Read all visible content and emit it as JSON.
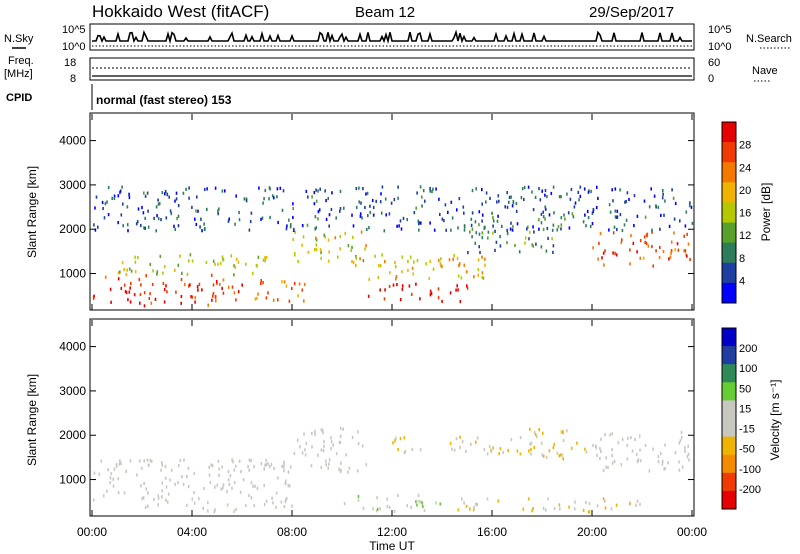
{
  "header": {
    "station": "Hokkaido West (fitACF)",
    "beam": "Beam 12",
    "date": "29/Sep/2017"
  },
  "aux": {
    "nsky_label": "N.Sky",
    "nsearch_label": "N.Search",
    "noise_ticks_left": [
      "10^5",
      "10^0"
    ],
    "noise_ticks_right": [
      "10^5",
      "10^0"
    ],
    "freq_label_line1": "Freq.",
    "freq_label_line2": "[MHz]",
    "freq_ticks": [
      "18",
      "8"
    ],
    "nave_label": "Nave",
    "nave_ticks": [
      "60",
      "0"
    ],
    "cpid_label": "CPID",
    "cpid_value": "normal (fast stereo) 153"
  },
  "colors": {
    "power_scale": [
      "#0000ff",
      "#1f3fa0",
      "#2e7d5a",
      "#5aa02c",
      "#b5c800",
      "#f0b400",
      "#f57800",
      "#f03c00",
      "#e60000"
    ],
    "velocity_scale": [
      "#0000c8",
      "#1f3fa0",
      "#2e8b57",
      "#66cc33",
      "#c8c8c0",
      "#c8c8c0",
      "#f0b400",
      "#f58c00",
      "#f03c00",
      "#e60000"
    ]
  },
  "chart_data": [
    {
      "type": "heatmap",
      "name": "power",
      "ylabel": "Slant Range [km]",
      "xlabel": "",
      "yticks": [
        "1000",
        "2000",
        "3000",
        "4000"
      ],
      "ylim": [
        200,
        4600
      ],
      "xlim": [
        "00:00",
        "24:00"
      ],
      "colorbar": {
        "label": "Power [dB]",
        "ticks": [
          "4",
          "8",
          "12",
          "16",
          "20",
          "24",
          "28"
        ],
        "range": [
          0,
          32
        ]
      },
      "regions": [
        {
          "t": [
            0,
            6
          ],
          "r": [
            300,
            1000
          ],
          "value": 28
        },
        {
          "t": [
            6,
            8.5
          ],
          "r": [
            400,
            900
          ],
          "value": 24
        },
        {
          "t": [
            1,
            7
          ],
          "r": [
            1000,
            1500
          ],
          "value": 16
        },
        {
          "t": [
            8,
            11
          ],
          "r": [
            1200,
            2000
          ],
          "value": 18
        },
        {
          "t": [
            11,
            15
          ],
          "r": [
            400,
            800
          ],
          "value": 30
        },
        {
          "t": [
            11,
            16
          ],
          "r": [
            900,
            1500
          ],
          "value": 20
        },
        {
          "t": [
            15,
            19
          ],
          "r": [
            1500,
            2300
          ],
          "value": 10
        },
        {
          "t": [
            20,
            24
          ],
          "r": [
            1200,
            2000
          ],
          "value": 26
        },
        {
          "t": [
            0,
            24
          ],
          "r": [
            2000,
            3000
          ],
          "value": 6
        }
      ]
    },
    {
      "type": "heatmap",
      "name": "velocity",
      "ylabel": "Slant Range [km]",
      "xlabel": "Time UT",
      "yticks": [
        "1000",
        "2000",
        "3000",
        "4000"
      ],
      "ylim": [
        200,
        4600
      ],
      "xlim": [
        "00:00",
        "24:00"
      ],
      "xticks": [
        "00:00",
        "04:00",
        "08:00",
        "12:00",
        "16:00",
        "20:00",
        "00:00"
      ],
      "colorbar": {
        "label": "Velocity [m s⁻¹]",
        "ticks": [
          "200",
          "100",
          "50",
          "15",
          "-15",
          "-50",
          "-100",
          "-200"
        ],
        "range": [
          -250,
          250
        ]
      },
      "regions": [
        {
          "t": [
            0,
            8
          ],
          "r": [
            300,
            1500
          ],
          "value": 0
        },
        {
          "t": [
            8,
            11
          ],
          "r": [
            1200,
            2200
          ],
          "value": 0
        },
        {
          "t": [
            10,
            14
          ],
          "r": [
            300,
            700
          ],
          "value": 40
        },
        {
          "t": [
            12,
            17
          ],
          "r": [
            1600,
            2000
          ],
          "value": -40
        },
        {
          "t": [
            17,
            20
          ],
          "r": [
            1500,
            2200
          ],
          "value": -60
        },
        {
          "t": [
            20,
            24
          ],
          "r": [
            1200,
            2100
          ],
          "value": 20
        },
        {
          "t": [
            14,
            22
          ],
          "r": [
            300,
            600
          ],
          "value": -50
        }
      ]
    }
  ]
}
